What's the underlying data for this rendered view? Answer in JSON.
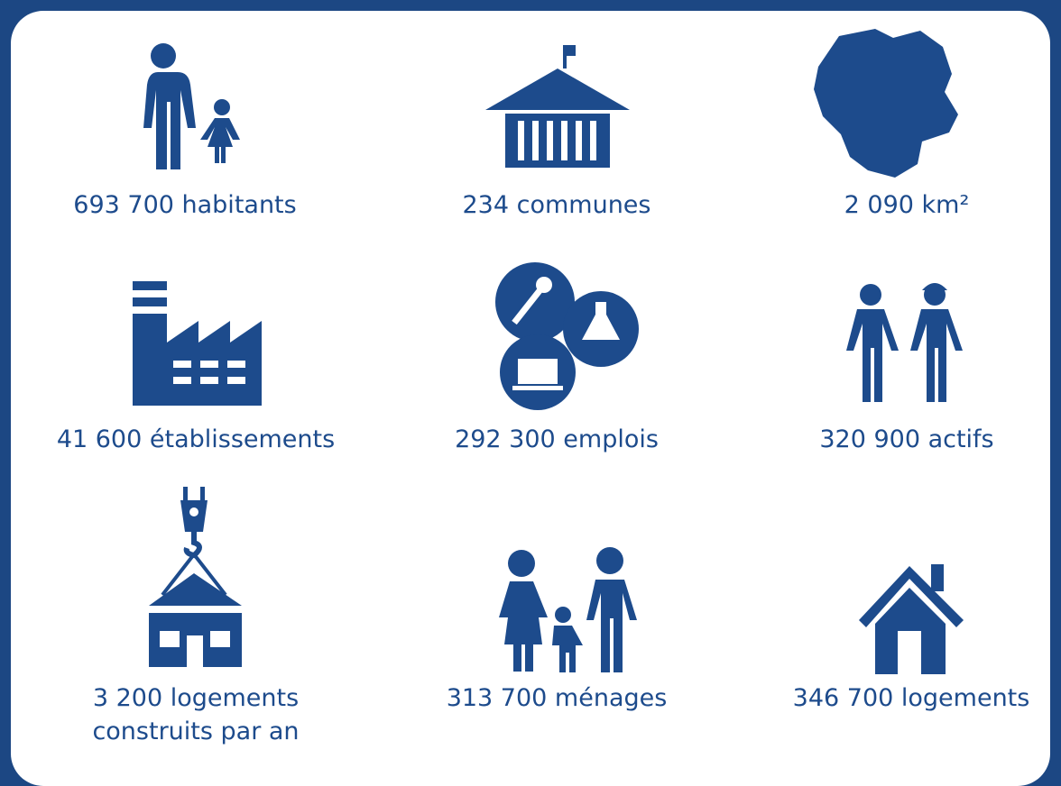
{
  "items": [
    {
      "lines": [
        "693 700 habitants"
      ]
    },
    {
      "lines": [
        "234 communes"
      ]
    },
    {
      "lines": [
        "2 090 km²"
      ]
    },
    {
      "lines": [
        "41 600 établissements"
      ]
    },
    {
      "lines": [
        "292 300 emplois"
      ]
    },
    {
      "lines": [
        "320 900 actifs"
      ]
    },
    {
      "lines": [
        "3 200 logements",
        "construits par an"
      ]
    },
    {
      "lines": [
        "313 700 ménages"
      ]
    },
    {
      "lines": [
        "346 700 logements"
      ]
    }
  ]
}
